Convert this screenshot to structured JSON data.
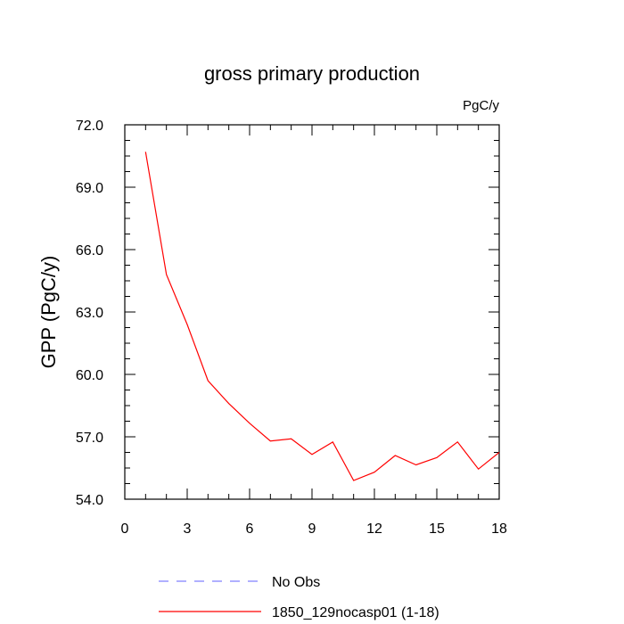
{
  "chart_data": {
    "type": "line",
    "title": "gross primary production",
    "units_label": "PgC/y",
    "xlabel": "",
    "ylabel": "GPP  (PgC/y)",
    "xlim": [
      0,
      18
    ],
    "ylim": [
      54.0,
      72.0
    ],
    "x_ticks": [
      0,
      3,
      6,
      9,
      12,
      15,
      18
    ],
    "x_tick_labels": [
      "0",
      "3",
      "6",
      "9",
      "12",
      "15",
      "18"
    ],
    "y_ticks": [
      54.0,
      57.0,
      60.0,
      63.0,
      66.0,
      69.0,
      72.0
    ],
    "y_tick_labels": [
      "54.0",
      "57.0",
      "60.0",
      "63.0",
      "66.0",
      "69.0",
      "72.0"
    ],
    "grid": false,
    "legend_position": "bottom",
    "series": [
      {
        "name": "1850_129nocasp01 (1-18)",
        "color": "#ff0000",
        "style": "solid",
        "x": [
          1,
          2,
          3,
          4,
          5,
          6,
          7,
          8,
          9,
          10,
          11,
          12,
          13,
          14,
          15,
          16,
          17,
          18
        ],
        "values": [
          70.7,
          64.8,
          62.4,
          59.7,
          58.6,
          57.65,
          56.8,
          56.9,
          56.15,
          56.75,
          54.9,
          55.3,
          56.1,
          55.65,
          56.0,
          56.75,
          55.45,
          56.25
        ]
      }
    ],
    "legend": [
      {
        "label": "No Obs",
        "color": "#8080ff",
        "style": "dashed"
      },
      {
        "label": "1850_129nocasp01 (1-18)",
        "color": "#ff0000",
        "style": "solid"
      }
    ]
  }
}
